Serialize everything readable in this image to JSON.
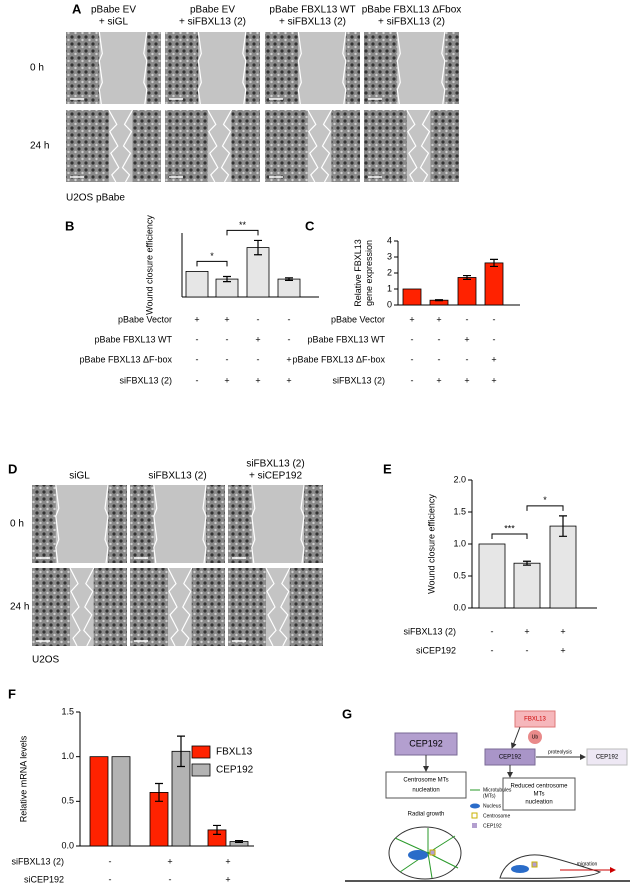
{
  "panel_labels": [
    "A",
    "B",
    "C",
    "D",
    "E",
    "F",
    "G"
  ],
  "panel_a": {
    "columns": [
      [
        "pBabe EV",
        "+ siGL"
      ],
      [
        "pBabe EV",
        "+ siFBXL13 (2)"
      ],
      [
        "pBabe FBXL13 WT",
        "+ siFBXL13 (2)"
      ],
      [
        "pBabe FBXL13 ΔFbox",
        "+ siFBXL13 (2)"
      ]
    ],
    "rows": [
      "0 h",
      "24 h"
    ],
    "caption": "U2OS pBabe"
  },
  "panel_d": {
    "columns": [
      [
        "siGL"
      ],
      [
        "siFBXL13 (2)"
      ],
      [
        "siFBXL13 (2)",
        "+ siCEP192"
      ]
    ],
    "rows": [
      "0 h",
      "24 h"
    ],
    "caption": "U2OS"
  },
  "chart_data": [
    {
      "type": "bar",
      "ylabel": "Wound closure efficiency",
      "values": [
        1.0,
        0.7,
        1.93,
        0.7
      ],
      "errors": [
        null,
        0.1,
        0.28,
        0.05
      ],
      "color": "#e6e6e6",
      "ylim": [
        0,
        2.5
      ],
      "significance": [
        "*",
        "**"
      ],
      "conditions": [
        {
          "name": "pBabe Vector",
          "values": [
            "+",
            "+",
            "-",
            "-"
          ]
        },
        {
          "name": "pBabe FBXL13 WT",
          "values": [
            "-",
            "-",
            "+",
            "-"
          ]
        },
        {
          "name": "pBabe FBXL13 ΔF-box",
          "values": [
            "-",
            "-",
            "-",
            "+"
          ]
        },
        {
          "name": "siFBXL13 (2)",
          "values": [
            "-",
            "+",
            "+",
            "+"
          ]
        }
      ]
    },
    {
      "type": "bar",
      "ylabel": [
        "Relative FBXL13",
        "gene expression"
      ],
      "values": [
        1.0,
        0.3,
        1.72,
        2.63
      ],
      "errors": [
        null,
        0.03,
        0.12,
        0.22
      ],
      "color": "#ff2200",
      "ylim": [
        0,
        4
      ],
      "yticks": [
        0,
        1,
        2,
        3,
        4
      ],
      "conditions": [
        {
          "name": "pBabe Vector",
          "values": [
            "+",
            "+",
            "-",
            "-"
          ]
        },
        {
          "name": "pBabe FBXL13 WT",
          "values": [
            "-",
            "-",
            "+",
            "-"
          ]
        },
        {
          "name": "pBabe FBXL13 ΔF-box",
          "values": [
            "-",
            "-",
            "-",
            "+"
          ]
        },
        {
          "name": "siFBXL13 (2)",
          "values": [
            "-",
            "+",
            "+",
            "+"
          ]
        }
      ]
    },
    {
      "type": "bar",
      "ylabel": "Wound closure efficiency",
      "values": [
        1.0,
        0.7,
        1.28
      ],
      "errors": [
        null,
        0.03,
        0.16
      ],
      "color": "#e6e6e6",
      "ylim": [
        0,
        2
      ],
      "yticks": [
        {
          "value": 0,
          "label": "0.0"
        },
        {
          "value": 0.5,
          "label": "0.5"
        },
        {
          "value": 1,
          "label": "1.0"
        },
        {
          "value": 1.5,
          "label": "1.5"
        },
        {
          "value": 2,
          "label": "2.0"
        }
      ],
      "significance": [
        "***",
        "*"
      ],
      "conditions": [
        {
          "name": "siFBXL13 (2)",
          "values": [
            "-",
            "+",
            "+"
          ]
        },
        {
          "name": "siCEP192",
          "values": [
            "-",
            "-",
            "+"
          ]
        }
      ]
    },
    {
      "type": "grouped_bar",
      "ylabel": "Relative mRNA levels",
      "ylim": [
        0,
        1.5
      ],
      "yticks": [
        {
          "value": 0,
          "label": "0.0"
        },
        {
          "value": 0.5,
          "label": "0.5"
        },
        {
          "value": 1,
          "label": "1.0"
        },
        {
          "value": 1.5,
          "label": "1.5"
        }
      ],
      "series": [
        {
          "name": "FBXL13",
          "color": "#ff2200",
          "values": [
            1.0,
            0.6,
            0.18
          ],
          "errors": [
            null,
            0.1,
            0.05
          ]
        },
        {
          "name": "CEP192",
          "color": "#b3b3b3",
          "values": [
            1.0,
            1.06,
            0.05
          ],
          "errors": [
            null,
            0.17,
            0.01
          ]
        }
      ],
      "conditions": [
        {
          "name": "siFBXL13 (2)",
          "values": [
            "-",
            "+",
            "+"
          ]
        },
        {
          "name": "siCEP192",
          "values": [
            "-",
            "-",
            "+"
          ]
        }
      ]
    }
  ],
  "diagram": {
    "cep192_left": "CEP192",
    "nucleation": [
      "Centrosome MTs",
      "nucleation"
    ],
    "radial": "Radial growth",
    "fbxl13": "FBXL13",
    "ub": "Ub",
    "cep192_mid": "CEP192",
    "proteolysis": "proteolysis",
    "cep192_right": "CEP192",
    "legend": [
      "Microtubules",
      "(MTs)",
      "Nucleus",
      "Centrosome",
      "CEP192"
    ],
    "reduced": [
      "Reduced centrosome",
      "MTs",
      "nucleation"
    ],
    "migration": "migration"
  }
}
